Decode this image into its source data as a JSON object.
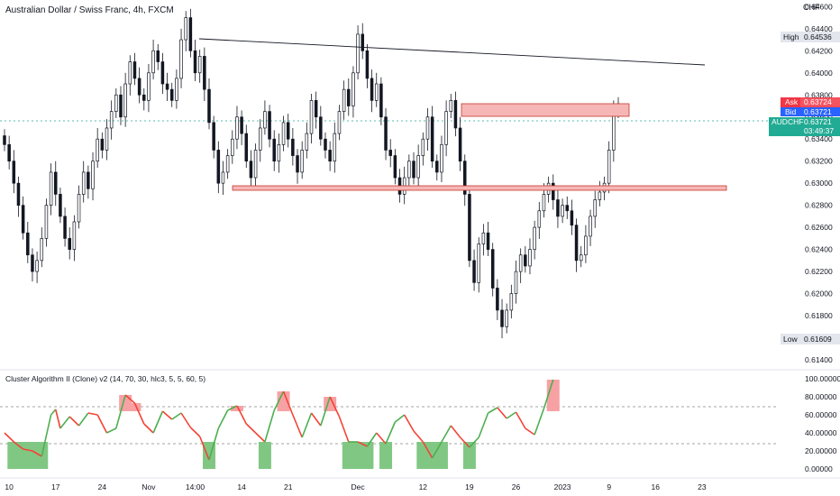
{
  "title": "Australian Dollar / Swiss Franc, 4h, FXCM",
  "currency": "CHF",
  "colors": {
    "up": "#26a69a",
    "down": "#000000",
    "ask": "#f23645",
    "bid": "#2962ff",
    "last": "#22ab94",
    "zone_fill": "#f7b6b6",
    "zone_stroke": "#e0474c",
    "osc_up": "#4caf50",
    "osc_down": "#f44336",
    "ob_fill": "#f7a1a4",
    "os_fill": "#81c784"
  },
  "price_scale": {
    "ticks": [
      "0.64600",
      "0.64400",
      "0.64200",
      "0.64000",
      "0.63800",
      "0.63600",
      "0.63400",
      "0.63200",
      "0.63000",
      "0.62800",
      "0.62600",
      "0.62400",
      "0.62200",
      "0.62000",
      "0.61800",
      "0.61600",
      "0.61400"
    ],
    "high": {
      "label": "High",
      "value": "0.64536"
    },
    "low": {
      "label": "Low",
      "value": "0.61609"
    },
    "ask": {
      "label": "Ask",
      "value": "0.63724"
    },
    "bid": {
      "label": "Bid",
      "value": "0.63721"
    },
    "last": {
      "label": "AUDCHF",
      "value": "0.63721",
      "countdown": "03:49:37"
    }
  },
  "time_axis": {
    "ticks": [
      "10",
      "17",
      "24",
      "Nov",
      "14:00",
      "14",
      "21",
      "Dec",
      "12",
      "19",
      "26",
      "2023",
      "9",
      "16",
      "23"
    ]
  },
  "indicator": {
    "title": "Cluster Algorithm II (Clone) v2 (14, 70, 30, hlc3, 5, 5, 60, 5)",
    "ticks": [
      "100.00000",
      "80.00000",
      "60.00000",
      "40.00000",
      "20.00000",
      "0.00000"
    ],
    "upper_level": 70,
    "lower_level": 30
  },
  "chart_data": [
    {
      "type": "candlestick",
      "title": "Australian Dollar / Swiss Franc, 4h, FXCM",
      "ylabel": "CHF",
      "ylim": [
        0.6131,
        0.6466
      ],
      "xlim": [
        0,
        145
      ],
      "x_tick_labels": [
        {
          "x": 1,
          "label": "10"
        },
        {
          "x": 11,
          "label": "17"
        },
        {
          "x": 21,
          "label": "24"
        },
        {
          "x": 31,
          "label": "Nov"
        },
        {
          "x": 41,
          "label": "14:00"
        },
        {
          "x": 51,
          "label": "14"
        },
        {
          "x": 61,
          "label": "21"
        },
        {
          "x": 76,
          "label": "Dec"
        },
        {
          "x": 90,
          "label": "12"
        },
        {
          "x": 100,
          "label": "19"
        },
        {
          "x": 110,
          "label": "26"
        },
        {
          "x": 120,
          "label": "2023"
        },
        {
          "x": 130,
          "label": "9"
        },
        {
          "x": 140,
          "label": "16"
        },
        {
          "x": 150,
          "label": "23"
        }
      ],
      "close": [
        0.6335,
        0.632,
        0.63,
        0.628,
        0.6255,
        0.6235,
        0.622,
        0.623,
        0.625,
        0.628,
        0.631,
        0.629,
        0.627,
        0.625,
        0.624,
        0.6265,
        0.629,
        0.631,
        0.6295,
        0.632,
        0.634,
        0.633,
        0.635,
        0.6365,
        0.638,
        0.636,
        0.639,
        0.641,
        0.6395,
        0.638,
        0.6375,
        0.64,
        0.642,
        0.641,
        0.639,
        0.6385,
        0.6375,
        0.6395,
        0.643,
        0.645,
        0.642,
        0.64,
        0.6415,
        0.6385,
        0.6355,
        0.633,
        0.63,
        0.631,
        0.6325,
        0.634,
        0.636,
        0.6345,
        0.632,
        0.6305,
        0.633,
        0.635,
        0.6365,
        0.634,
        0.632,
        0.6335,
        0.6355,
        0.634,
        0.6325,
        0.631,
        0.633,
        0.6345,
        0.6375,
        0.636,
        0.634,
        0.633,
        0.632,
        0.6345,
        0.6365,
        0.6385,
        0.637,
        0.64,
        0.6435,
        0.642,
        0.6395,
        0.6375,
        0.639,
        0.636,
        0.633,
        0.6325,
        0.6305,
        0.629,
        0.6305,
        0.632,
        0.6305,
        0.6325,
        0.634,
        0.636,
        0.632,
        0.631,
        0.6335,
        0.6365,
        0.6375,
        0.635,
        0.632,
        0.629,
        0.623,
        0.621,
        0.6245,
        0.6255,
        0.624,
        0.6205,
        0.6185,
        0.617,
        0.6185,
        0.62,
        0.622,
        0.6235,
        0.6225,
        0.624,
        0.626,
        0.6275,
        0.629,
        0.63,
        0.6285,
        0.627,
        0.628,
        0.6275,
        0.6262,
        0.623,
        0.6235,
        0.6252,
        0.627,
        0.6285,
        0.6292,
        0.63,
        0.633,
        0.6365,
        0.6372
      ],
      "zones": [
        {
          "from_x": 88,
          "to_x": 124,
          "ymin": 0.6364,
          "ymax": 0.6375
        },
        {
          "from_x": 44,
          "to_x": 137,
          "ymin": 0.63015,
          "ymax": 0.63065
        }
      ],
      "trendline": [
        {
          "x": 38,
          "y": 0.64536
        },
        {
          "x": 136,
          "y": 0.64242
        }
      ]
    },
    {
      "type": "line",
      "title": "Cluster Algorithm II (Clone) v2 (14, 70, 30, hlc3, 5, 5, 60, 5)",
      "ylim": [
        0,
        100
      ],
      "x": [
        0,
        2,
        4,
        6,
        8,
        10,
        11,
        12,
        14,
        16,
        18,
        20,
        22,
        24,
        26,
        28,
        30,
        32,
        34,
        36,
        38,
        40,
        42,
        44,
        46,
        48,
        50,
        52,
        54,
        56,
        58,
        60,
        62,
        64,
        66,
        68,
        70,
        72,
        74,
        76,
        78,
        80,
        82,
        84,
        86,
        88,
        90,
        92,
        94,
        96,
        98,
        100,
        102,
        104,
        106,
        108,
        110,
        112,
        114,
        116,
        118
      ],
      "values": [
        40,
        30,
        22,
        20,
        14,
        60,
        66,
        45,
        58,
        48,
        62,
        60,
        40,
        45,
        82,
        73,
        50,
        40,
        64,
        55,
        62,
        46,
        36,
        10,
        45,
        65,
        70,
        50,
        40,
        30,
        65,
        86,
        60,
        35,
        62,
        48,
        80,
        58,
        30,
        30,
        25,
        40,
        28,
        52,
        60,
        42,
        30,
        12,
        30,
        48,
        35,
        24,
        35,
        62,
        68,
        56,
        63,
        45,
        38,
        67,
        99
      ],
      "series": [
        {
          "name": "",
          "values_key": "values"
        }
      ]
    }
  ]
}
